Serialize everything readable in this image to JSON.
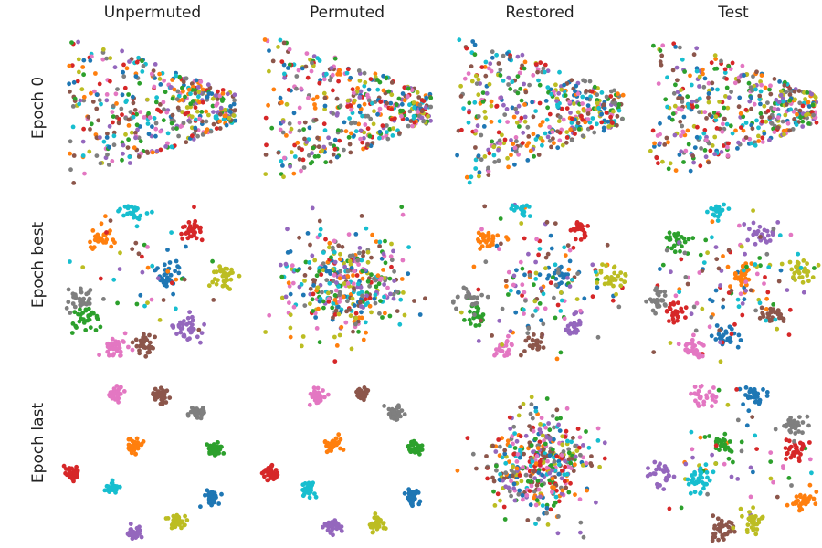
{
  "chart_data": {
    "type": "scatter",
    "description_layout": "grid of t-SNE style embeddings",
    "columns": [
      "Unpermuted",
      "Permuted",
      "Restored",
      "Test"
    ],
    "rows": [
      "Epoch 0",
      "Epoch best",
      "Epoch last"
    ],
    "axes_visible": false,
    "grid": false,
    "class_colors": [
      "#1f77b4",
      "#ff7f0e",
      "#2ca02c",
      "#d62728",
      "#9467bd",
      "#8c564b",
      "#e377c2",
      "#7f7f7f",
      "#bcbd22",
      "#17becf"
    ],
    "clusters": {
      "epoch_best": {
        "unpermuted": [
          {
            "class": 0,
            "x": 0.6,
            "y": 0.55
          },
          {
            "class": 1,
            "x": 0.2,
            "y": 0.78
          },
          {
            "class": 2,
            "x": 0.13,
            "y": 0.29
          },
          {
            "class": 3,
            "x": 0.72,
            "y": 0.84
          },
          {
            "class": 4,
            "x": 0.7,
            "y": 0.24
          },
          {
            "class": 5,
            "x": 0.47,
            "y": 0.13
          },
          {
            "class": 6,
            "x": 0.3,
            "y": 0.11
          },
          {
            "class": 7,
            "x": 0.1,
            "y": 0.4
          },
          {
            "class": 8,
            "x": 0.9,
            "y": 0.55
          },
          {
            "class": 9,
            "x": 0.4,
            "y": 0.96
          }
        ],
        "test": [
          {
            "class": 0,
            "x": 0.46,
            "y": 0.18
          },
          {
            "class": 1,
            "x": 0.55,
            "y": 0.55
          },
          {
            "class": 2,
            "x": 0.2,
            "y": 0.77
          },
          {
            "class": 3,
            "x": 0.17,
            "y": 0.32
          },
          {
            "class": 4,
            "x": 0.67,
            "y": 0.81
          },
          {
            "class": 5,
            "x": 0.73,
            "y": 0.3
          },
          {
            "class": 6,
            "x": 0.28,
            "y": 0.1
          },
          {
            "class": 7,
            "x": 0.08,
            "y": 0.4
          },
          {
            "class": 8,
            "x": 0.88,
            "y": 0.58
          },
          {
            "class": 9,
            "x": 0.42,
            "y": 0.95
          }
        ]
      },
      "epoch_last": {
        "unpermuted": [
          {
            "class": 0,
            "x": 0.84,
            "y": 0.3
          },
          {
            "class": 1,
            "x": 0.4,
            "y": 0.62
          },
          {
            "class": 2,
            "x": 0.86,
            "y": 0.6
          },
          {
            "class": 3,
            "x": 0.06,
            "y": 0.45
          },
          {
            "class": 4,
            "x": 0.4,
            "y": 0.08
          },
          {
            "class": 5,
            "x": 0.55,
            "y": 0.93
          },
          {
            "class": 6,
            "x": 0.3,
            "y": 0.93
          },
          {
            "class": 7,
            "x": 0.75,
            "y": 0.83
          },
          {
            "class": 8,
            "x": 0.64,
            "y": 0.15
          },
          {
            "class": 9,
            "x": 0.28,
            "y": 0.35
          }
        ],
        "permuted": [
          {
            "class": 0,
            "x": 0.87,
            "y": 0.3
          },
          {
            "class": 1,
            "x": 0.42,
            "y": 0.62
          },
          {
            "class": 2,
            "x": 0.88,
            "y": 0.6
          },
          {
            "class": 3,
            "x": 0.08,
            "y": 0.45
          },
          {
            "class": 4,
            "x": 0.42,
            "y": 0.12
          },
          {
            "class": 5,
            "x": 0.58,
            "y": 0.93
          },
          {
            "class": 6,
            "x": 0.33,
            "y": 0.92
          },
          {
            "class": 7,
            "x": 0.77,
            "y": 0.82
          },
          {
            "class": 8,
            "x": 0.67,
            "y": 0.14
          },
          {
            "class": 9,
            "x": 0.28,
            "y": 0.35
          }
        ],
        "test": [
          {
            "class": 0,
            "x": 0.62,
            "y": 0.92
          },
          {
            "class": 1,
            "x": 0.9,
            "y": 0.28
          },
          {
            "class": 2,
            "x": 0.45,
            "y": 0.62
          },
          {
            "class": 3,
            "x": 0.85,
            "y": 0.58
          },
          {
            "class": 4,
            "x": 0.1,
            "y": 0.45
          },
          {
            "class": 5,
            "x": 0.45,
            "y": 0.1
          },
          {
            "class": 6,
            "x": 0.33,
            "y": 0.92
          },
          {
            "class": 7,
            "x": 0.85,
            "y": 0.74
          },
          {
            "class": 8,
            "x": 0.62,
            "y": 0.15
          },
          {
            "class": 9,
            "x": 0.3,
            "y": 0.4
          }
        ]
      }
    }
  }
}
